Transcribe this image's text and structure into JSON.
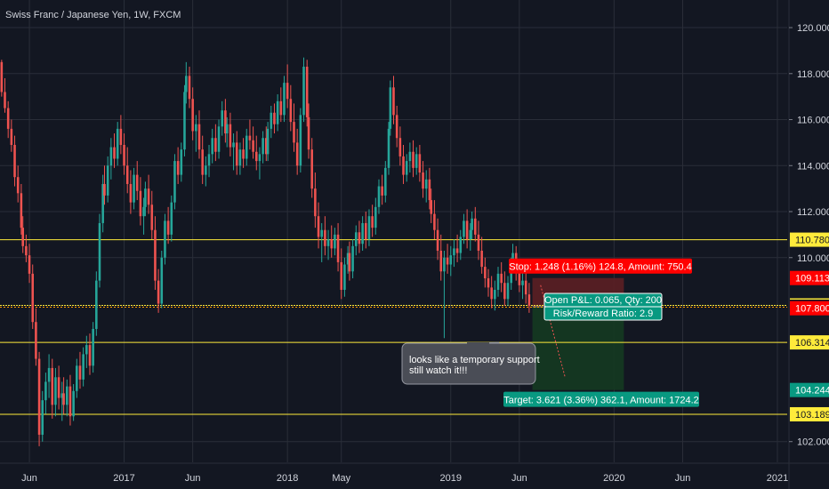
{
  "header": {
    "title": "Swiss Franc / Japanese Yen, 1W, FXCM"
  },
  "colors": {
    "background": "#131722",
    "grid": "#2a2e39",
    "axis_text": "#d1d4dc",
    "up": "#26a69a",
    "down": "#ef5350",
    "level_line": "#ffeb3b",
    "stop_zone": "#5c1f24",
    "target_zone": "#153a21",
    "stop_label": "#ff0000",
    "target_label": "#089981",
    "callout_bg": "#4a4d56"
  },
  "chart_data": {
    "type": "candlestick",
    "y_axis": {
      "ticks": [
        "120.000",
        "118.000",
        "116.000",
        "114.000",
        "112.000",
        "110.000",
        "102.000"
      ],
      "tick_values": [
        120,
        118,
        116,
        114,
        112,
        110,
        102
      ],
      "range": [
        101.1,
        121.2
      ]
    },
    "x_axis": {
      "labels": [
        "Jun",
        "2017",
        "Jun",
        "2018",
        "May",
        "2019",
        "Jun",
        "2020",
        "Jun",
        "2021"
      ],
      "label_values": [
        2016.42,
        2017.0,
        2017.42,
        2018.0,
        2018.33,
        2019.0,
        2019.42,
        2020.0,
        2020.42,
        2021.0
      ],
      "range": [
        2016.24,
        2021.06
      ]
    },
    "price_levels": [
      {
        "label": "110.780",
        "value": 110.78,
        "style": "line"
      },
      {
        "label": "107.922",
        "value": 107.922,
        "style": "line-dotted"
      },
      {
        "label": "106.314",
        "value": 106.314,
        "style": "line"
      },
      {
        "label": "103.189",
        "value": 103.189,
        "style": "line"
      }
    ],
    "price_tags": [
      {
        "label": "109.113",
        "value": 109.113,
        "color": "#ff0000"
      },
      {
        "label": "107.865",
        "value": 107.865,
        "color": "#131722"
      },
      {
        "label": "107.800",
        "value": 107.8,
        "color": "#ff0000"
      },
      {
        "label": "104.244",
        "value": 104.244,
        "color": "#089981"
      }
    ],
    "position": {
      "entry": 107.865,
      "stop": 109.113,
      "target": 104.244,
      "x_start": 2019.5,
      "x_end": 2020.06,
      "stop_text": "Stop: 1.248 (1.16%) 124.8, Amount: 750.4",
      "open_text": "Open P&L: 0.065, Qty: 200",
      "rr_text": "Risk/Reward Ratio: 2.9",
      "target_text": "Target: 3.621 (3.36%) 362.1, Amount: 1724.2"
    },
    "callout": {
      "lines": [
        "looks like a temporary support",
        "still watch it!!!"
      ],
      "pointer": {
        "x": 2019.22,
        "y": 106.314
      }
    },
    "candles": [
      [
        2016.25,
        118.5,
        118.6,
        117.0,
        117.2
      ],
      [
        2016.27,
        117.2,
        117.8,
        116.3,
        116.5
      ],
      [
        2016.29,
        116.5,
        116.8,
        115.2,
        115.6
      ],
      [
        2016.31,
        115.6,
        116.0,
        114.6,
        114.9
      ],
      [
        2016.33,
        114.9,
        115.3,
        113.1,
        113.5
      ],
      [
        2016.35,
        113.5,
        114.0,
        112.4,
        112.8
      ],
      [
        2016.37,
        112.8,
        113.2,
        111.0,
        111.3
      ],
      [
        2016.38,
        111.3,
        111.8,
        110.2,
        110.5
      ],
      [
        2016.4,
        110.5,
        111.0,
        109.8,
        110.1
      ],
      [
        2016.42,
        110.1,
        110.6,
        108.9,
        109.3
      ],
      [
        2016.44,
        109.3,
        109.7,
        106.9,
        107.2
      ],
      [
        2016.46,
        107.2,
        107.8,
        105.3,
        105.6
      ],
      [
        2016.48,
        105.6,
        105.9,
        101.8,
        102.3
      ],
      [
        2016.5,
        102.3,
        104.2,
        102.0,
        103.8
      ],
      [
        2016.52,
        103.8,
        105.0,
        103.2,
        104.6
      ],
      [
        2016.54,
        104.6,
        105.8,
        103.9,
        105.2
      ],
      [
        2016.56,
        105.2,
        105.6,
        103.0,
        103.6
      ],
      [
        2016.58,
        103.6,
        105.2,
        103.1,
        104.8
      ],
      [
        2016.6,
        104.8,
        105.3,
        103.4,
        103.9
      ],
      [
        2016.62,
        103.9,
        104.6,
        102.9,
        104.1
      ],
      [
        2016.63,
        104.1,
        104.8,
        103.2,
        103.6
      ],
      [
        2016.65,
        103.6,
        104.7,
        103.1,
        104.4
      ],
      [
        2016.67,
        104.4,
        104.9,
        102.7,
        103.1
      ],
      [
        2016.69,
        103.1,
        104.5,
        102.9,
        104.2
      ],
      [
        2016.71,
        104.2,
        105.6,
        103.9,
        105.3
      ],
      [
        2016.73,
        105.3,
        105.9,
        104.3,
        104.7
      ],
      [
        2016.75,
        104.7,
        106.1,
        104.4,
        105.8
      ],
      [
        2016.77,
        105.8,
        106.6,
        105.2,
        106.2
      ],
      [
        2016.79,
        106.2,
        106.7,
        104.9,
        105.3
      ],
      [
        2016.81,
        105.3,
        107.2,
        105.0,
        106.9
      ],
      [
        2016.83,
        106.9,
        109.4,
        106.6,
        109.0
      ],
      [
        2016.85,
        109.0,
        111.9,
        108.7,
        111.5
      ],
      [
        2016.87,
        111.5,
        113.6,
        111.1,
        113.2
      ],
      [
        2016.88,
        113.2,
        114.0,
        112.3,
        112.7
      ],
      [
        2016.9,
        112.7,
        114.4,
        112.4,
        114.0
      ],
      [
        2016.92,
        114.0,
        115.2,
        113.4,
        114.8
      ],
      [
        2016.94,
        114.8,
        115.4,
        113.9,
        114.3
      ],
      [
        2016.96,
        114.3,
        115.9,
        114.0,
        115.6
      ],
      [
        2016.98,
        115.6,
        116.2,
        114.5,
        114.9
      ],
      [
        2017.0,
        114.9,
        115.4,
        113.6,
        114.0
      ],
      [
        2017.02,
        114.0,
        114.8,
        112.8,
        113.2
      ],
      [
        2017.04,
        113.2,
        113.8,
        111.9,
        112.4
      ],
      [
        2017.06,
        112.4,
        113.9,
        112.1,
        113.6
      ],
      [
        2017.08,
        113.6,
        114.2,
        112.5,
        112.9
      ],
      [
        2017.1,
        112.9,
        113.5,
        111.4,
        111.8
      ],
      [
        2017.12,
        111.8,
        112.6,
        111.0,
        112.2
      ],
      [
        2017.13,
        112.2,
        113.3,
        111.8,
        113.0
      ],
      [
        2017.15,
        113.0,
        113.6,
        111.9,
        112.3
      ],
      [
        2017.17,
        112.3,
        112.9,
        110.8,
        111.2
      ],
      [
        2017.19,
        111.2,
        111.8,
        108.6,
        109.0
      ],
      [
        2017.21,
        109.0,
        109.5,
        107.6,
        108.0
      ],
      [
        2017.23,
        108.0,
        110.3,
        107.8,
        110.0
      ],
      [
        2017.25,
        110.0,
        111.9,
        109.7,
        111.6
      ],
      [
        2017.27,
        111.6,
        112.2,
        110.6,
        111.0
      ],
      [
        2017.29,
        111.0,
        112.7,
        110.7,
        112.4
      ],
      [
        2017.31,
        112.4,
        114.5,
        112.1,
        114.2
      ],
      [
        2017.33,
        114.2,
        114.8,
        113.2,
        113.6
      ],
      [
        2017.35,
        113.6,
        115.0,
        113.3,
        114.7
      ],
      [
        2017.37,
        114.7,
        117.5,
        114.4,
        117.2
      ],
      [
        2017.38,
        117.2,
        118.5,
        116.7,
        117.9
      ],
      [
        2017.4,
        117.9,
        118.3,
        116.5,
        116.9
      ],
      [
        2017.42,
        116.9,
        117.4,
        115.1,
        115.5
      ],
      [
        2017.44,
        115.5,
        116.2,
        114.6,
        115.8
      ],
      [
        2017.46,
        115.8,
        116.4,
        114.3,
        114.7
      ],
      [
        2017.48,
        114.7,
        115.3,
        113.2,
        113.6
      ],
      [
        2017.5,
        113.6,
        114.4,
        113.1,
        114.0
      ],
      [
        2017.52,
        114.0,
        114.9,
        113.5,
        114.5
      ],
      [
        2017.54,
        114.5,
        115.6,
        114.1,
        115.2
      ],
      [
        2017.56,
        115.2,
        115.8,
        114.2,
        114.6
      ],
      [
        2017.58,
        114.6,
        116.0,
        114.3,
        115.7
      ],
      [
        2017.6,
        115.7,
        116.8,
        115.3,
        116.4
      ],
      [
        2017.62,
        116.4,
        116.9,
        115.0,
        115.4
      ],
      [
        2017.63,
        115.4,
        116.1,
        114.8,
        115.8
      ],
      [
        2017.65,
        115.8,
        116.3,
        114.4,
        114.8
      ],
      [
        2017.67,
        114.8,
        115.4,
        113.8,
        115.0
      ],
      [
        2017.69,
        115.0,
        115.5,
        113.6,
        114.0
      ],
      [
        2017.71,
        114.0,
        115.0,
        113.6,
        114.7
      ],
      [
        2017.73,
        114.7,
        115.2,
        113.9,
        114.3
      ],
      [
        2017.75,
        114.3,
        115.6,
        114.0,
        115.3
      ],
      [
        2017.77,
        115.3,
        116.0,
        114.7,
        115.1
      ],
      [
        2017.79,
        115.1,
        115.7,
        114.3,
        114.6
      ],
      [
        2017.81,
        114.6,
        115.3,
        113.8,
        114.2
      ],
      [
        2017.83,
        114.2,
        114.8,
        113.4,
        114.5
      ],
      [
        2017.85,
        114.5,
        115.5,
        114.1,
        115.2
      ],
      [
        2017.87,
        115.2,
        115.7,
        114.2,
        114.5
      ],
      [
        2017.88,
        114.5,
        115.9,
        114.2,
        115.6
      ],
      [
        2017.9,
        115.6,
        116.6,
        115.2,
        116.3
      ],
      [
        2017.92,
        116.3,
        116.7,
        115.4,
        115.8
      ],
      [
        2017.94,
        115.8,
        117.1,
        115.5,
        116.8
      ],
      [
        2017.96,
        116.8,
        117.4,
        115.9,
        116.2
      ],
      [
        2017.98,
        116.2,
        117.9,
        115.9,
        117.6
      ],
      [
        2018.0,
        117.6,
        118.4,
        116.5,
        116.9
      ],
      [
        2018.02,
        116.9,
        117.5,
        115.5,
        115.9
      ],
      [
        2018.04,
        115.9,
        116.7,
        114.6,
        115.0
      ],
      [
        2018.06,
        115.0,
        115.6,
        113.6,
        114.0
      ],
      [
        2018.08,
        114.0,
        116.5,
        113.7,
        116.2
      ],
      [
        2018.1,
        116.2,
        118.7,
        115.9,
        118.3
      ],
      [
        2018.12,
        118.3,
        118.6,
        115.7,
        116.1
      ],
      [
        2018.13,
        116.1,
        116.7,
        114.3,
        114.7
      ],
      [
        2018.15,
        114.7,
        115.2,
        112.6,
        113.0
      ],
      [
        2018.17,
        113.0,
        113.7,
        111.3,
        111.8
      ],
      [
        2018.19,
        111.8,
        112.4,
        110.4,
        110.9
      ],
      [
        2018.21,
        110.9,
        111.5,
        109.8,
        111.2
      ],
      [
        2018.23,
        111.2,
        111.8,
        110.1,
        110.5
      ],
      [
        2018.25,
        110.5,
        111.2,
        109.9,
        110.8
      ],
      [
        2018.27,
        110.8,
        111.4,
        110.0,
        110.4
      ],
      [
        2018.29,
        110.4,
        111.3,
        110.1,
        111.0
      ],
      [
        2018.31,
        111.0,
        111.5,
        109.4,
        109.8
      ],
      [
        2018.33,
        109.8,
        110.4,
        108.2,
        108.6
      ],
      [
        2018.35,
        108.6,
        110.0,
        108.3,
        109.7
      ],
      [
        2018.37,
        109.7,
        110.5,
        109.3,
        110.2
      ],
      [
        2018.38,
        110.2,
        110.7,
        109.0,
        109.4
      ],
      [
        2018.4,
        109.4,
        110.8,
        109.1,
        110.5
      ],
      [
        2018.42,
        110.5,
        111.4,
        110.1,
        111.1
      ],
      [
        2018.44,
        111.1,
        111.6,
        110.2,
        110.6
      ],
      [
        2018.46,
        110.6,
        111.8,
        110.3,
        111.5
      ],
      [
        2018.48,
        111.5,
        112.0,
        110.4,
        110.8
      ],
      [
        2018.5,
        110.8,
        112.1,
        110.5,
        111.8
      ],
      [
        2018.52,
        111.8,
        112.3,
        110.9,
        111.3
      ],
      [
        2018.54,
        111.3,
        112.6,
        111.0,
        112.2
      ],
      [
        2018.56,
        112.2,
        113.4,
        111.9,
        113.1
      ],
      [
        2018.58,
        113.1,
        113.6,
        112.3,
        112.7
      ],
      [
        2018.6,
        112.7,
        114.2,
        112.4,
        113.9
      ],
      [
        2018.62,
        113.9,
        115.9,
        113.6,
        115.6
      ],
      [
        2018.63,
        115.6,
        117.7,
        115.3,
        117.4
      ],
      [
        2018.65,
        117.4,
        117.9,
        115.8,
        116.2
      ],
      [
        2018.67,
        116.2,
        116.6,
        114.8,
        115.2
      ],
      [
        2018.69,
        115.2,
        115.7,
        114.0,
        114.4
      ],
      [
        2018.71,
        114.4,
        114.9,
        113.2,
        113.6
      ],
      [
        2018.73,
        113.6,
        114.5,
        113.3,
        114.2
      ],
      [
        2018.75,
        114.2,
        115.0,
        113.7,
        114.6
      ],
      [
        2018.77,
        114.6,
        115.1,
        113.5,
        113.9
      ],
      [
        2018.79,
        113.9,
        114.8,
        113.6,
        114.5
      ],
      [
        2018.81,
        114.5,
        114.9,
        113.3,
        113.7
      ],
      [
        2018.83,
        113.7,
        114.2,
        112.6,
        113.0
      ],
      [
        2018.85,
        113.0,
        113.8,
        112.4,
        113.4
      ],
      [
        2018.87,
        113.4,
        113.9,
        112.1,
        112.5
      ],
      [
        2018.88,
        112.5,
        113.0,
        111.5,
        111.9
      ],
      [
        2018.9,
        111.9,
        112.5,
        110.8,
        111.2
      ],
      [
        2018.92,
        111.2,
        111.7,
        109.9,
        110.3
      ],
      [
        2018.94,
        110.3,
        111.0,
        109.0,
        109.4
      ],
      [
        2018.96,
        109.4,
        110.3,
        106.5,
        110.0
      ],
      [
        2018.98,
        110.0,
        110.6,
        109.3,
        109.7
      ],
      [
        2019.0,
        109.7,
        110.5,
        109.2,
        110.1
      ],
      [
        2019.02,
        110.1,
        110.8,
        109.6,
        110.4
      ],
      [
        2019.04,
        110.4,
        111.0,
        109.8,
        110.2
      ],
      [
        2019.06,
        110.2,
        111.2,
        109.9,
        110.9
      ],
      [
        2019.08,
        110.9,
        111.9,
        110.6,
        111.6
      ],
      [
        2019.1,
        111.6,
        112.1,
        110.4,
        110.8
      ],
      [
        2019.12,
        110.8,
        111.5,
        110.3,
        111.2
      ],
      [
        2019.13,
        111.2,
        112.0,
        110.8,
        111.7
      ],
      [
        2019.15,
        111.7,
        112.2,
        110.7,
        111.0
      ],
      [
        2019.17,
        111.0,
        111.6,
        109.9,
        110.3
      ],
      [
        2019.19,
        110.3,
        110.9,
        109.3,
        109.6
      ],
      [
        2019.21,
        109.6,
        110.0,
        108.7,
        109.1
      ],
      [
        2019.23,
        109.1,
        109.5,
        108.3,
        108.7
      ],
      [
        2019.25,
        108.7,
        109.2,
        107.8,
        108.2
      ],
      [
        2019.27,
        108.2,
        109.0,
        107.7,
        108.6
      ],
      [
        2019.29,
        108.6,
        109.6,
        108.3,
        109.3
      ],
      [
        2019.31,
        109.3,
        109.8,
        108.5,
        108.9
      ],
      [
        2019.33,
        108.9,
        109.4,
        107.9,
        108.2
      ],
      [
        2019.35,
        108.2,
        109.2,
        107.9,
        108.9
      ],
      [
        2019.37,
        108.9,
        110.0,
        108.6,
        109.7
      ],
      [
        2019.38,
        109.7,
        110.6,
        109.4,
        110.2
      ],
      [
        2019.4,
        110.2,
        110.5,
        109.0,
        109.4
      ],
      [
        2019.42,
        109.4,
        109.9,
        108.5,
        108.8
      ],
      [
        2019.44,
        108.8,
        109.4,
        108.2,
        109.0
      ],
      [
        2019.46,
        109.0,
        109.5,
        108.0,
        108.4
      ],
      [
        2019.48,
        108.4,
        108.9,
        107.6,
        107.9
      ]
    ]
  }
}
